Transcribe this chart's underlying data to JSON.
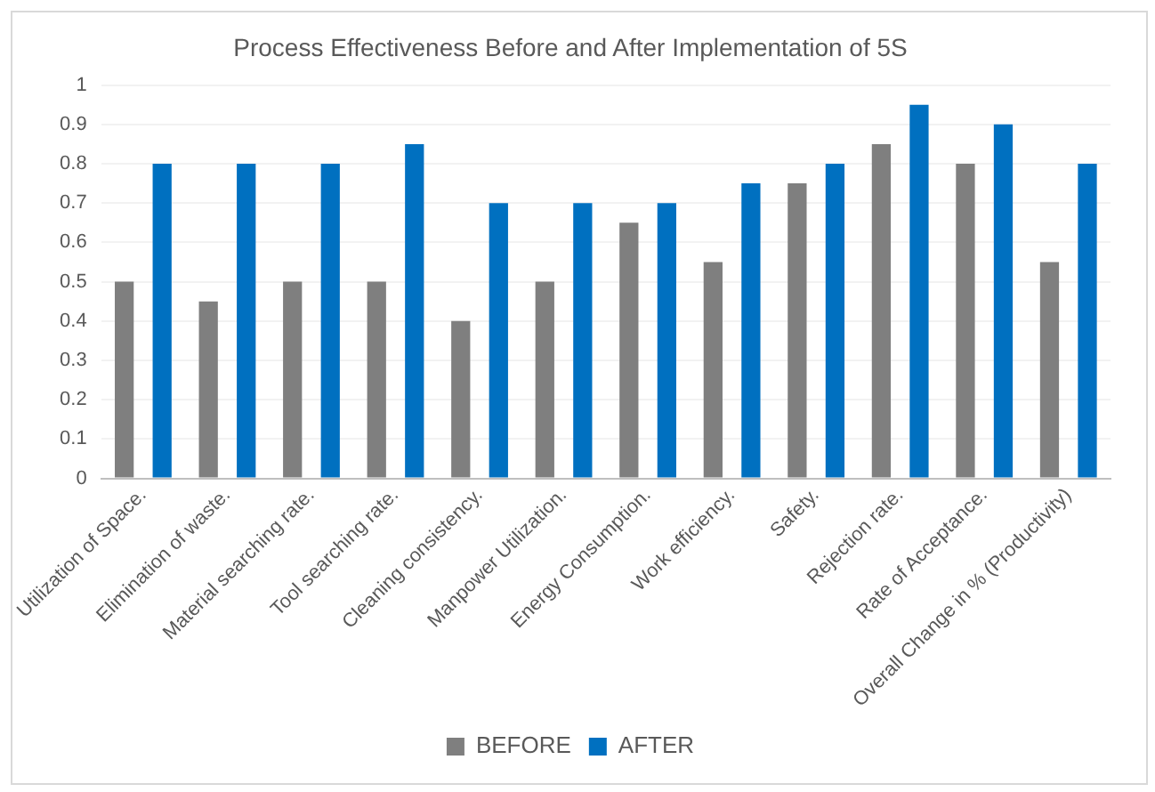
{
  "chart_data": {
    "type": "bar",
    "title": "Process Effectiveness Before and After Implementation of 5S",
    "categories": [
      "Utilization of Space.",
      "Elimination of waste.",
      "Material searching rate.",
      "Tool searching rate.",
      "Cleaning consistency.",
      "Manpower Utilization.",
      "Energy Consumption.",
      "Work efficiency.",
      "Safety.",
      "Rejection rate.",
      "Rate of Acceptance.",
      "Overall Change in % (Productivity)"
    ],
    "series": [
      {
        "name": "BEFORE",
        "color": "#7f7f7f",
        "values": [
          0.5,
          0.45,
          0.5,
          0.5,
          0.4,
          0.5,
          0.65,
          0.55,
          0.75,
          0.85,
          0.8,
          0.55
        ]
      },
      {
        "name": "AFTER",
        "color": "#0070c0",
        "values": [
          0.8,
          0.8,
          0.8,
          0.85,
          0.7,
          0.7,
          0.7,
          0.75,
          0.8,
          0.95,
          0.9,
          0.8
        ]
      }
    ],
    "ylim": [
      0,
      1
    ],
    "yticks": [
      0,
      0.1,
      0.2,
      0.3,
      0.4,
      0.5,
      0.6,
      0.7,
      0.8,
      0.9,
      1
    ],
    "grid": "y",
    "legend": "bottom"
  }
}
